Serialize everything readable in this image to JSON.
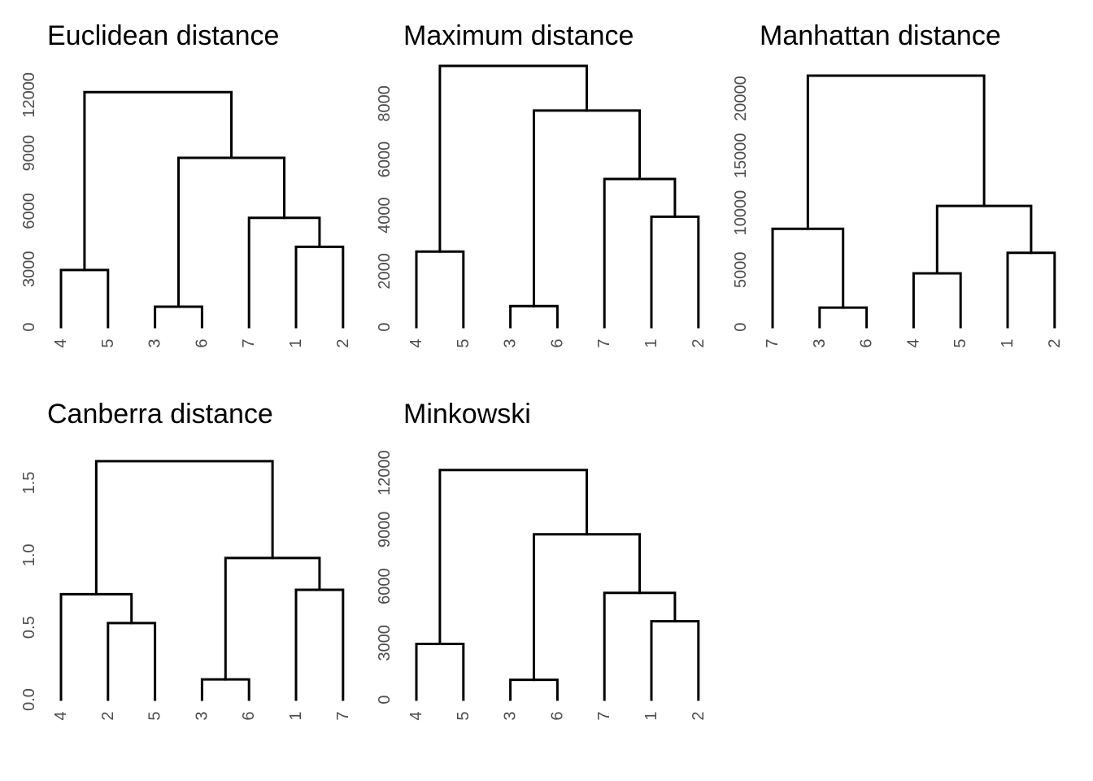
{
  "chart_data": [
    {
      "type": "dendrogram",
      "title": "Euclidean distance",
      "ylim": [
        0,
        13000
      ],
      "y_ticks": [
        0,
        3000,
        6000,
        9000,
        12000
      ],
      "y_tick_labels": [
        "0",
        "3000",
        "6000",
        "9000",
        "12000"
      ],
      "leaves": [
        "4",
        "5",
        "3",
        "6",
        "7",
        "1",
        "2"
      ],
      "merges": [
        {
          "left": [
            0
          ],
          "right": [
            1
          ],
          "height": 2950
        },
        {
          "left": [
            2
          ],
          "right": [
            3
          ],
          "height": 1050
        },
        {
          "left": [
            5
          ],
          "right": [
            6
          ],
          "height": 4150
        },
        {
          "left": [
            4
          ],
          "right": [
            5,
            6
          ],
          "height": 5650
        },
        {
          "left": [
            2,
            3
          ],
          "right": [
            4,
            5,
            6
          ],
          "height": 8750
        },
        {
          "left": [
            0,
            1
          ],
          "right": [
            2,
            3,
            4,
            5,
            6
          ],
          "height": 12150
        }
      ]
    },
    {
      "type": "dendrogram",
      "title": "Maximum distance",
      "ylim": [
        0,
        9000
      ],
      "y_ticks": [
        0,
        2000,
        4000,
        6000,
        8000
      ],
      "y_tick_labels": [
        "0",
        "2000",
        "4000",
        "6000",
        "8000"
      ],
      "leaves": [
        "4",
        "5",
        "3",
        "6",
        "7",
        "1",
        "2"
      ],
      "merges": [
        {
          "left": [
            0
          ],
          "right": [
            1
          ],
          "height": 2700
        },
        {
          "left": [
            2
          ],
          "right": [
            3
          ],
          "height": 750
        },
        {
          "left": [
            5
          ],
          "right": [
            6
          ],
          "height": 3950
        },
        {
          "left": [
            4
          ],
          "right": [
            5,
            6
          ],
          "height": 5300
        },
        {
          "left": [
            2,
            3
          ],
          "right": [
            4,
            5,
            6
          ],
          "height": 7750
        },
        {
          "left": [
            0,
            1
          ],
          "right": [
            2,
            3,
            4,
            5,
            6
          ],
          "height": 9350
        }
      ]
    },
    {
      "type": "dendrogram",
      "title": "Manhattan distance",
      "ylim": [
        0,
        22000
      ],
      "y_ticks": [
        0,
        5000,
        10000,
        15000,
        20000
      ],
      "y_tick_labels": [
        "0",
        "5000",
        "10000",
        "15000",
        "20000"
      ],
      "leaves": [
        "7",
        "3",
        "6",
        "4",
        "5",
        "1",
        "2"
      ],
      "merges": [
        {
          "left": [
            1
          ],
          "right": [
            2
          ],
          "height": 1700
        },
        {
          "left": [
            0
          ],
          "right": [
            1,
            2
          ],
          "height": 8600
        },
        {
          "left": [
            3
          ],
          "right": [
            4
          ],
          "height": 4700
        },
        {
          "left": [
            5
          ],
          "right": [
            6
          ],
          "height": 6500
        },
        {
          "left": [
            3,
            4
          ],
          "right": [
            5,
            6
          ],
          "height": 10600
        },
        {
          "left": [
            0,
            1,
            2
          ],
          "right": [
            3,
            4,
            5,
            6
          ],
          "height": 22000
        }
      ]
    },
    {
      "type": "dendrogram",
      "title": "Canberra distance",
      "ylim": [
        0,
        1.7
      ],
      "y_ticks": [
        0,
        0.5,
        1.0,
        1.5
      ],
      "y_tick_labels": [
        "0.0",
        "0.5",
        "1.0",
        "1.5"
      ],
      "leaves": [
        "4",
        "2",
        "5",
        "3",
        "6",
        "1",
        "7"
      ],
      "merges": [
        {
          "left": [
            1
          ],
          "right": [
            2
          ],
          "height": 0.53
        },
        {
          "left": [
            0
          ],
          "right": [
            1,
            2
          ],
          "height": 0.73
        },
        {
          "left": [
            3
          ],
          "right": [
            4
          ],
          "height": 0.14
        },
        {
          "left": [
            5
          ],
          "right": [
            6
          ],
          "height": 0.76
        },
        {
          "left": [
            3,
            4
          ],
          "right": [
            5,
            6
          ],
          "height": 0.98
        },
        {
          "left": [
            0,
            1,
            2
          ],
          "right": [
            3,
            4,
            5,
            6
          ],
          "height": 1.65
        }
      ]
    },
    {
      "type": "dendrogram",
      "title": "Minkowski",
      "ylim": [
        0,
        13000
      ],
      "y_ticks": [
        0,
        3000,
        6000,
        9000,
        12000
      ],
      "y_tick_labels": [
        "0",
        "3000",
        "6000",
        "9000",
        "12000"
      ],
      "leaves": [
        "4",
        "5",
        "3",
        "6",
        "7",
        "1",
        "2"
      ],
      "merges": [
        {
          "left": [
            0
          ],
          "right": [
            1
          ],
          "height": 2950
        },
        {
          "left": [
            2
          ],
          "right": [
            3
          ],
          "height": 1050
        },
        {
          "left": [
            5
          ],
          "right": [
            6
          ],
          "height": 4150
        },
        {
          "left": [
            4
          ],
          "right": [
            5,
            6
          ],
          "height": 5650
        },
        {
          "left": [
            2,
            3
          ],
          "right": [
            4,
            5,
            6
          ],
          "height": 8750
        },
        {
          "left": [
            0,
            1
          ],
          "right": [
            2,
            3,
            4,
            5,
            6
          ],
          "height": 12150
        }
      ]
    }
  ]
}
